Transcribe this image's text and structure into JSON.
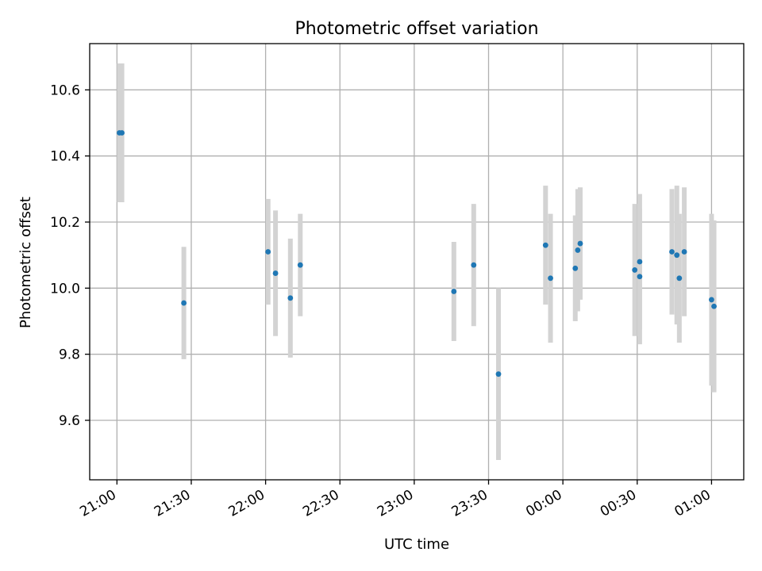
{
  "chart_data": {
    "type": "scatter",
    "title": "Photometric offset variation",
    "xlabel": "UTC time",
    "ylabel": "Photometric offset",
    "x_tick_labels": [
      "21:00",
      "21:30",
      "22:00",
      "22:30",
      "23:00",
      "23:30",
      "00:00",
      "00:30",
      "01:00"
    ],
    "y_tick_labels": [
      "9.6",
      "9.8",
      "10.0",
      "10.2",
      "10.4",
      "10.6"
    ],
    "y_ticks": [
      9.6,
      9.8,
      10.0,
      10.2,
      10.4,
      10.6
    ],
    "xlim": [
      "20:49",
      "01:13"
    ],
    "ylim": [
      9.42,
      10.74
    ],
    "grid": true,
    "colors": {
      "point": "#1f77b4",
      "errorbar": "#d3d3d3",
      "grid": "#b0b0b0"
    },
    "points": [
      {
        "x": "21:01",
        "y": 10.47,
        "err": 0.21
      },
      {
        "x": "21:02",
        "y": 10.47,
        "err": 0.21
      },
      {
        "x": "21:27",
        "y": 9.955,
        "err": 0.17
      },
      {
        "x": "22:01",
        "y": 10.11,
        "err": 0.16
      },
      {
        "x": "22:04",
        "y": 10.045,
        "err": 0.19
      },
      {
        "x": "22:10",
        "y": 9.97,
        "err": 0.18
      },
      {
        "x": "22:14",
        "y": 10.07,
        "err": 0.155
      },
      {
        "x": "23:16",
        "y": 9.99,
        "err": 0.15
      },
      {
        "x": "23:24",
        "y": 10.07,
        "err": 0.185
      },
      {
        "x": "23:34",
        "y": 9.74,
        "err": 0.26
      },
      {
        "x": "23:53",
        "y": 10.13,
        "err": 0.18
      },
      {
        "x": "23:55",
        "y": 10.03,
        "err": 0.195
      },
      {
        "x": "00:05",
        "y": 10.06,
        "err": 0.16
      },
      {
        "x": "00:06",
        "y": 10.115,
        "err": 0.185
      },
      {
        "x": "00:07",
        "y": 10.135,
        "err": 0.17
      },
      {
        "x": "00:29",
        "y": 10.055,
        "err": 0.2
      },
      {
        "x": "00:31",
        "y": 10.035,
        "err": 0.205
      },
      {
        "x": "00:31",
        "y": 10.08,
        "err": 0.205
      },
      {
        "x": "00:44",
        "y": 10.11,
        "err": 0.19
      },
      {
        "x": "00:46",
        "y": 10.1,
        "err": 0.21
      },
      {
        "x": "00:47",
        "y": 10.03,
        "err": 0.195
      },
      {
        "x": "00:49",
        "y": 10.11,
        "err": 0.195
      },
      {
        "x": "01:00",
        "y": 9.965,
        "err": 0.26
      },
      {
        "x": "01:01",
        "y": 9.945,
        "err": 0.26
      }
    ]
  }
}
